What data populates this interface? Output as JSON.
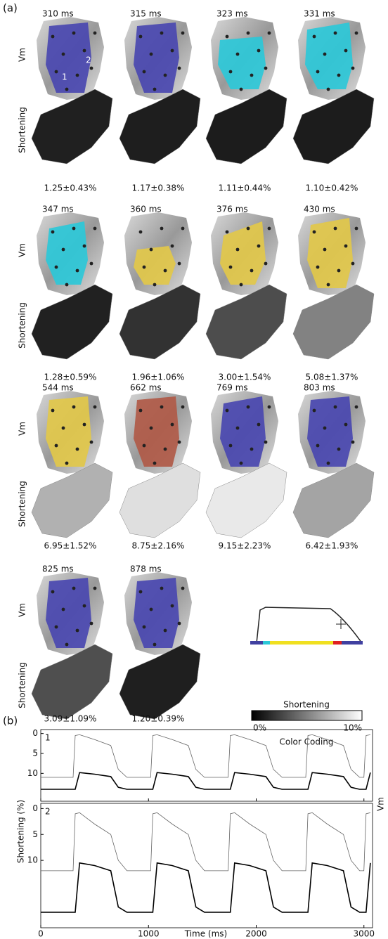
{
  "panel_a": {
    "label": "(a)",
    "row_labels": {
      "vm": "Vm",
      "shortening": "Shortening"
    },
    "frames": [
      {
        "time": "310 ms",
        "shortening": "1.25±0.43%"
      },
      {
        "time": "315 ms",
        "shortening": "1.17±0.38%"
      },
      {
        "time": "323 ms",
        "shortening": "1.11±0.44%"
      },
      {
        "time": "331 ms",
        "shortening": "1.10±0.42%"
      },
      {
        "time": "347 ms",
        "shortening": "1.28±0.59%"
      },
      {
        "time": "360 ms",
        "shortening": "1.96±1.06%"
      },
      {
        "time": "376 ms",
        "shortening": "3.00±1.54%"
      },
      {
        "time": "430 ms",
        "shortening": "5.08±1.37%"
      },
      {
        "time": "544 ms",
        "shortening": "6.95±1.52%"
      },
      {
        "time": "662 ms",
        "shortening": "8.75±2.16%"
      },
      {
        "time": "769 ms",
        "shortening": "9.15±2.23%"
      },
      {
        "time": "803 ms",
        "shortening": "6.42±1.93%"
      },
      {
        "time": "825 ms",
        "shortening": "3.09±1.09%"
      },
      {
        "time": "878 ms",
        "shortening": "1.20±0.39%"
      }
    ],
    "site_labels": [
      "1",
      "2"
    ],
    "legend": {
      "title": "Shortening",
      "min": "0%",
      "max": "10%",
      "caption": "Color Coding"
    }
  },
  "panel_b": {
    "label": "(b)",
    "ylabel": "Shortening (%)",
    "y2label": "Vm",
    "xlabel": "Time (ms)"
  },
  "chart_data": [
    {
      "type": "line",
      "title": "1",
      "inverted": true,
      "x": [
        0,
        280,
        300,
        320,
        360,
        500,
        650,
        720,
        800,
        1000,
        1020,
        1040,
        1080,
        1220,
        1370,
        1440,
        1520,
        1720,
        1740,
        1760,
        1800,
        1940,
        2090,
        2160,
        2240,
        2440,
        2460,
        2480,
        2520,
        2660,
        2810,
        2880,
        2960,
        2980,
        3000,
        3020,
        3060
      ],
      "series": [
        {
          "color": "#666666",
          "width": 0.8,
          "values": [
            11,
            11,
            11,
            0.5,
            0.3,
            1.5,
            3,
            9,
            11,
            11,
            11,
            0.5,
            0.3,
            1.5,
            3,
            9,
            11,
            11,
            11,
            0.5,
            0.3,
            1.5,
            3,
            9,
            11,
            11,
            11,
            0.5,
            0.3,
            1.5,
            3,
            9,
            11,
            11,
            11,
            0.5,
            0.3
          ]
        },
        {
          "color": "#000000",
          "width": 1.6,
          "values": [
            14,
            14,
            14,
            14,
            9.8,
            10.2,
            10.8,
            13.5,
            14,
            14,
            14,
            14,
            9.8,
            10.2,
            10.8,
            13.5,
            14,
            14,
            14,
            14,
            9.8,
            10.2,
            10.8,
            13.5,
            14,
            14,
            14,
            14,
            9.8,
            10.2,
            10.8,
            13.5,
            14,
            14,
            14,
            14,
            9.8
          ]
        }
      ],
      "xlim": [
        0,
        3080
      ],
      "ylim": [
        -1,
        17
      ],
      "yticks": [
        0,
        5,
        10
      ],
      "xticks": [
        0,
        1000,
        2000,
        3000
      ]
    },
    {
      "type": "line",
      "title": "2",
      "inverted": true,
      "x": [
        0,
        280,
        300,
        320,
        360,
        500,
        650,
        720,
        800,
        1000,
        1020,
        1040,
        1080,
        1220,
        1370,
        1440,
        1520,
        1720,
        1740,
        1760,
        1800,
        1940,
        2090,
        2160,
        2240,
        2440,
        2460,
        2480,
        2520,
        2660,
        2810,
        2880,
        2960,
        2980,
        3000,
        3020,
        3060
      ],
      "series": [
        {
          "color": "#666666",
          "width": 0.8,
          "values": [
            12,
            12,
            12,
            1,
            0.8,
            3,
            5,
            10,
            12,
            12,
            12,
            1,
            0.8,
            3,
            5,
            10,
            12,
            12,
            12,
            1,
            0.8,
            3,
            5,
            10,
            12,
            12,
            12,
            1,
            0.8,
            3,
            5,
            10,
            12,
            12,
            12,
            1,
            0.8
          ]
        },
        {
          "color": "#000000",
          "width": 1.6,
          "values": [
            20,
            20,
            20,
            20,
            10.5,
            11,
            12,
            19,
            20,
            20,
            20,
            20,
            10.5,
            11,
            12,
            19,
            20,
            20,
            20,
            20,
            10.5,
            11,
            12,
            19,
            20,
            20,
            20,
            20,
            10.5,
            11,
            12,
            19,
            20,
            20,
            20,
            20,
            10.5
          ]
        }
      ],
      "xlim": [
        0,
        3080
      ],
      "ylim": [
        -1,
        23
      ],
      "yticks": [
        0,
        5,
        10
      ],
      "xticks": [
        0,
        1000,
        2000,
        3000
      ]
    }
  ]
}
